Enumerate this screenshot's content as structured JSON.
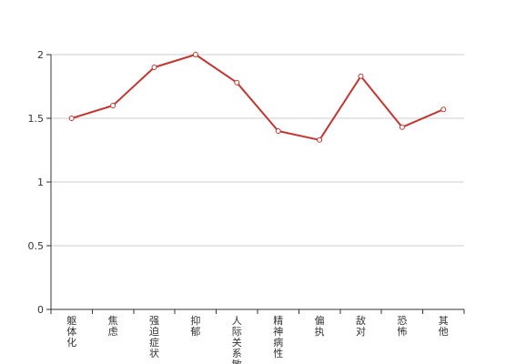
{
  "chart_data": {
    "type": "line",
    "categories": [
      "躯体化",
      "焦虑",
      "强迫症状",
      "抑郁",
      "人际关系敏感",
      "精神病性",
      "偏执",
      "敌对",
      "恐怖",
      "其他"
    ],
    "series": [
      {
        "values": [
          1.5,
          1.6,
          1.9,
          2.0,
          1.78,
          1.4,
          1.33,
          1.83,
          1.43,
          1.57
        ]
      }
    ],
    "y_ticks": [
      "0",
      "0.5",
      "1",
      "1.5",
      "2"
    ],
    "ylim": [
      0,
      2
    ],
    "grid": true,
    "colors": {
      "line": "#c23531",
      "grid": "#cccccc",
      "axis": "#333333"
    }
  }
}
